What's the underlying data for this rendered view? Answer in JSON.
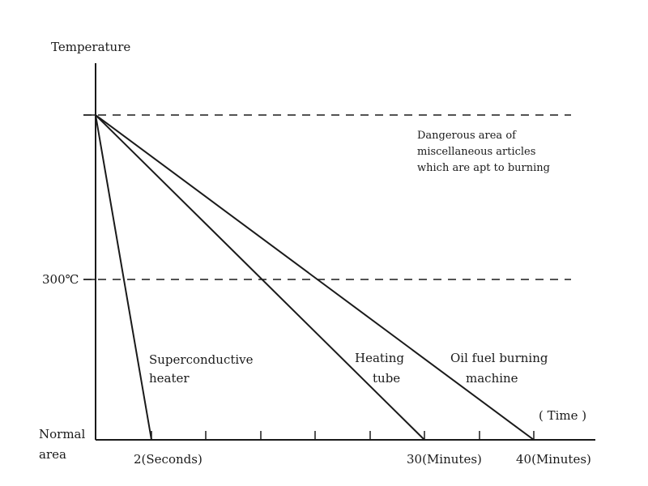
{
  "chart_data": {
    "type": "line",
    "title": "",
    "ylabel": "Temperature",
    "xlabel": "( Time )",
    "y_levels": {
      "normal": "Normal area",
      "mid": "300℃",
      "top": ""
    },
    "x_ticks": [
      {
        "label": "2(Seconds)"
      },
      {
        "label": ""
      },
      {
        "label": ""
      },
      {
        "label": ""
      },
      {
        "label": ""
      },
      {
        "label": "30(Minutes)"
      },
      {
        "label": ""
      },
      {
        "label": "40(Minutes)"
      }
    ],
    "series": [
      {
        "name": "Superconductive heater",
        "end_tick": 0
      },
      {
        "name": "Heating tube",
        "end_tick": 5
      },
      {
        "name": "Oil fuel burning machine",
        "end_tick": 7
      }
    ],
    "annotations": {
      "danger_zone": "Dangerous area of miscellaneous articles which are apt to burning",
      "normal_area": "Normal area",
      "series_labels": [
        {
          "series": 0,
          "lines": [
            "Superconductive",
            "heater"
          ]
        },
        {
          "series": 1,
          "lines": [
            "Heating",
            "tube"
          ]
        },
        {
          "series": 2,
          "lines": [
            "Oil fuel burning",
            "machine"
          ]
        }
      ],
      "danger_lines": [
        "Dangerous area of",
        "miscellaneous articles",
        "which are apt to burning"
      ]
    },
    "grid": false,
    "legend": "none"
  },
  "colors": {
    "line": "#1a1a1a",
    "background": "#ffffff"
  }
}
